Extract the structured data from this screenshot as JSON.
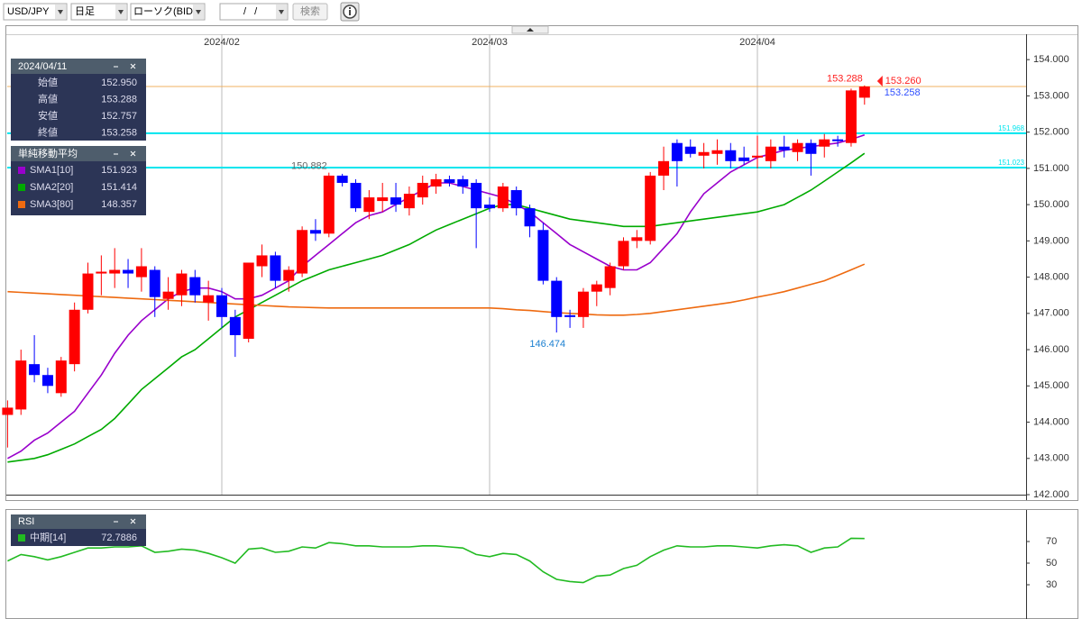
{
  "toolbar": {
    "pair": "USD/JPY",
    "period": "日足",
    "chart_type": "ローソク(BID)",
    "date": "/ /",
    "search": "検索"
  },
  "ohlc_panel": {
    "date": "2024/04/11",
    "rows": [
      {
        "label": "始値",
        "value": "152.950"
      },
      {
        "label": "高値",
        "value": "153.288"
      },
      {
        "label": "安値",
        "value": "152.757"
      },
      {
        "label": "終値",
        "value": "153.258"
      }
    ]
  },
  "sma_panel_title": "単純移動平均",
  "chart_data": [
    {
      "type": "candlestick",
      "categories": [
        null,
        null,
        null,
        null,
        null,
        null,
        null,
        null,
        null,
        null,
        null,
        null,
        null,
        null,
        null,
        null,
        "2024/02",
        null,
        null,
        null,
        null,
        null,
        null,
        null,
        null,
        null,
        null,
        null,
        null,
        null,
        null,
        null,
        null,
        null,
        null,
        null,
        "2024/03",
        null,
        null,
        null,
        null,
        null,
        null,
        null,
        null,
        null,
        null,
        null,
        null,
        null,
        null,
        null,
        null,
        null,
        null,
        null,
        "2024/04",
        null,
        null,
        null,
        null,
        null,
        null,
        null,
        null
      ],
      "open": [
        144.2,
        144.35,
        145.6,
        145.3,
        144.8,
        145.6,
        147.1,
        148.1,
        148.1,
        148.2,
        148.0,
        148.2,
        147.4,
        147.5,
        148.0,
        147.3,
        147.5,
        146.9,
        146.3,
        148.3,
        148.6,
        147.9,
        148.1,
        149.3,
        149.2,
        150.8,
        150.6,
        149.8,
        150.1,
        150.2,
        149.9,
        150.2,
        150.5,
        150.7,
        150.7,
        150.6,
        150.0,
        149.9,
        150.4,
        149.9,
        149.3,
        147.9,
        146.95,
        146.9,
        147.6,
        147.7,
        148.3,
        149.0,
        149.0,
        150.8,
        151.7,
        151.6,
        151.35,
        151.4,
        151.5,
        151.3,
        151.3,
        151.2,
        151.6,
        151.45,
        151.7,
        151.6,
        151.8,
        151.7,
        152.95
      ],
      "high": [
        144.6,
        146.0,
        146.4,
        145.5,
        145.8,
        147.3,
        148.4,
        148.6,
        148.8,
        148.5,
        148.8,
        148.3,
        148.0,
        148.2,
        148.2,
        147.9,
        147.7,
        147.1,
        148.4,
        148.9,
        148.7,
        148.3,
        149.4,
        149.6,
        150.882,
        150.85,
        150.7,
        150.4,
        150.6,
        150.6,
        150.5,
        150.8,
        150.85,
        150.8,
        150.8,
        150.7,
        150.2,
        150.6,
        150.5,
        150.0,
        149.5,
        148.0,
        147.1,
        147.7,
        147.9,
        148.4,
        149.1,
        149.3,
        150.9,
        151.6,
        151.8,
        151.8,
        151.7,
        151.8,
        151.7,
        151.6,
        151.9,
        151.8,
        151.9,
        151.8,
        151.8,
        151.95,
        151.9,
        153.2,
        153.288
      ],
      "low": [
        143.3,
        144.2,
        145.1,
        144.8,
        144.7,
        145.4,
        147.0,
        147.5,
        147.7,
        147.7,
        147.6,
        146.9,
        147.1,
        147.2,
        147.3,
        146.8,
        146.6,
        145.8,
        146.2,
        148.0,
        147.7,
        147.6,
        148.0,
        149.0,
        149.1,
        150.5,
        149.8,
        149.6,
        149.8,
        149.8,
        149.7,
        150.0,
        150.3,
        150.5,
        150.3,
        148.8,
        149.8,
        149.8,
        149.7,
        149.1,
        147.8,
        146.474,
        146.6,
        146.6,
        147.2,
        147.5,
        148.2,
        148.8,
        148.9,
        150.4,
        150.5,
        151.3,
        151.0,
        151.1,
        151.0,
        151.1,
        151.0,
        151.0,
        151.3,
        151.2,
        150.8,
        151.3,
        151.6,
        151.6,
        152.757
      ],
      "close": [
        144.4,
        145.7,
        145.3,
        145.0,
        145.7,
        147.1,
        148.1,
        148.15,
        148.2,
        148.1,
        148.3,
        147.45,
        147.6,
        148.1,
        147.5,
        147.5,
        146.9,
        146.4,
        148.4,
        148.6,
        147.9,
        148.2,
        149.3,
        149.2,
        150.8,
        150.6,
        149.9,
        150.2,
        150.2,
        150.0,
        150.3,
        150.6,
        150.7,
        150.6,
        150.5,
        149.9,
        149.9,
        150.5,
        149.9,
        149.4,
        147.9,
        146.9,
        146.9,
        147.6,
        147.8,
        148.3,
        149.0,
        149.1,
        150.8,
        151.2,
        151.2,
        151.4,
        151.45,
        151.5,
        151.2,
        151.2,
        151.35,
        151.6,
        151.5,
        151.7,
        151.4,
        151.8,
        151.75,
        153.15,
        153.258
      ],
      "up_color": "#ff0000",
      "down_color": "#0000ff",
      "series": [
        {
          "name": "SMA1[10]",
          "color": "#9900cc",
          "values": [
            143.0,
            143.2,
            143.5,
            143.7,
            144.0,
            144.3,
            144.8,
            145.3,
            145.9,
            146.4,
            146.8,
            147.1,
            147.4,
            147.6,
            147.7,
            147.7,
            147.6,
            147.4,
            147.4,
            147.5,
            147.7,
            147.9,
            148.3,
            148.6,
            148.9,
            149.2,
            149.5,
            149.7,
            149.8,
            150.0,
            150.2,
            150.4,
            150.6,
            150.6,
            150.5,
            150.4,
            150.3,
            150.2,
            150.0,
            149.8,
            149.5,
            149.2,
            148.9,
            148.7,
            148.5,
            148.3,
            148.2,
            148.2,
            148.4,
            148.8,
            149.2,
            149.8,
            150.3,
            150.6,
            150.9,
            151.1,
            151.3,
            151.4,
            151.5,
            151.55,
            151.6,
            151.65,
            151.7,
            151.8,
            151.923
          ]
        },
        {
          "name": "SMA2[20]",
          "color": "#00aa00",
          "values": [
            142.9,
            142.95,
            143.0,
            143.1,
            143.25,
            143.4,
            143.6,
            143.8,
            144.1,
            144.5,
            144.9,
            145.2,
            145.5,
            145.8,
            146.0,
            146.3,
            146.6,
            146.9,
            147.1,
            147.3,
            147.5,
            147.7,
            147.9,
            148.05,
            148.2,
            148.3,
            148.4,
            148.5,
            148.6,
            148.75,
            148.9,
            149.1,
            149.3,
            149.45,
            149.6,
            149.75,
            149.9,
            150.0,
            150.0,
            149.9,
            149.8,
            149.7,
            149.6,
            149.55,
            149.5,
            149.45,
            149.4,
            149.4,
            149.4,
            149.45,
            149.5,
            149.55,
            149.6,
            149.65,
            149.7,
            149.75,
            149.8,
            149.9,
            150.0,
            150.2,
            150.4,
            150.65,
            150.9,
            151.15,
            151.414
          ]
        },
        {
          "name": "SMA3[80]",
          "color": "#ee6a10",
          "values": [
            147.6,
            147.58,
            147.56,
            147.54,
            147.52,
            147.5,
            147.48,
            147.46,
            147.44,
            147.42,
            147.4,
            147.38,
            147.36,
            147.34,
            147.32,
            147.3,
            147.28,
            147.26,
            147.24,
            147.22,
            147.2,
            147.18,
            147.17,
            147.16,
            147.15,
            147.15,
            147.15,
            147.15,
            147.15,
            147.15,
            147.15,
            147.15,
            147.15,
            147.15,
            147.15,
            147.15,
            147.15,
            147.13,
            147.1,
            147.08,
            147.05,
            147.02,
            147.0,
            146.98,
            146.96,
            146.95,
            146.95,
            146.97,
            147.0,
            147.05,
            147.1,
            147.15,
            147.2,
            147.25,
            147.3,
            147.37,
            147.45,
            147.52,
            147.6,
            147.7,
            147.8,
            147.9,
            148.05,
            148.2,
            148.357
          ]
        }
      ],
      "ylim": [
        142,
        154.7
      ],
      "yticks": [
        {
          "value": 142,
          "label": "142.000"
        },
        {
          "value": 143,
          "label": "143.000"
        },
        {
          "value": 144,
          "label": "144.000"
        },
        {
          "value": 145,
          "label": "145.000"
        },
        {
          "value": 146,
          "label": "146.000"
        },
        {
          "value": 147,
          "label": "147.000"
        },
        {
          "value": 148,
          "label": "148.000"
        },
        {
          "value": 149,
          "label": "149.000"
        },
        {
          "value": 150,
          "label": "150.000"
        },
        {
          "value": 151,
          "label": "151.000"
        },
        {
          "value": 152,
          "label": "152.000"
        },
        {
          "value": 153,
          "label": "153.000"
        },
        {
          "value": 154,
          "label": "154.000"
        }
      ],
      "levels": [
        {
          "value": 151.968,
          "color": "#00e5ee"
        },
        {
          "value": 151.023,
          "color": "#00e5ee"
        }
      ],
      "close_line_color": "#f0b060",
      "price_labels": [
        {
          "value": 150.882,
          "color": "#666666"
        },
        {
          "value": 146.474,
          "color": "#1a7fd0"
        },
        {
          "value": 153.288,
          "color": "#ff2020"
        },
        {
          "value": 153.258,
          "color": "#3050ff"
        }
      ],
      "ask": {
        "value": 153.26,
        "label": "153.260",
        "color": "#ff2020"
      }
    },
    {
      "type": "line",
      "title": "RSI",
      "series": [
        {
          "name": "中期[14]",
          "color": "#22bb22",
          "values": [
            52,
            58,
            56,
            53,
            56,
            60,
            64,
            64,
            65,
            65,
            66,
            60,
            61,
            63,
            62,
            59,
            55,
            50,
            63,
            64,
            60,
            61,
            65,
            64,
            69,
            68,
            66,
            66,
            65,
            65,
            65,
            66,
            66,
            65,
            64,
            58,
            56,
            59,
            58,
            52,
            42,
            35,
            33,
            32,
            38,
            39,
            45,
            48,
            56,
            62,
            66,
            65,
            65,
            66,
            66,
            65,
            64,
            66,
            67,
            66,
            60,
            64,
            65,
            73,
            72.7886
          ]
        }
      ],
      "ylim": [
        0,
        100
      ],
      "yticks": [
        30,
        50,
        70
      ]
    }
  ]
}
